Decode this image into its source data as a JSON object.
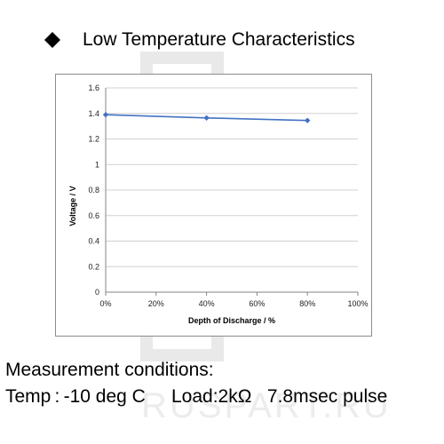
{
  "heading": {
    "title": "Low Temperature Characteristics"
  },
  "watermark": {
    "text": "RUSPART.RU"
  },
  "chart_data": {
    "type": "line",
    "x": [
      0,
      40,
      80
    ],
    "series": [
      {
        "values": [
          1.39,
          1.365,
          1.345
        ],
        "color": "#4472c4"
      }
    ],
    "xlabel": "Depth of Discharge / %",
    "ylabel": "Voltage  /  V",
    "xlim": [
      0,
      100
    ],
    "ylim": [
      0,
      1.6
    ],
    "xticks": [
      "0%",
      "20%",
      "40%",
      "60%",
      "80%",
      "100%"
    ],
    "yticks": [
      "0",
      "0.2",
      "0.4",
      "0.6",
      "0.8",
      "1",
      "1.2",
      "1.4",
      "1.6"
    ],
    "grid": true,
    "legend": "none"
  },
  "conditions": {
    "line1": "Measurement conditions:",
    "line2": "Temp : -10 deg C     Load:2kΩ   7.8msec pulse"
  }
}
